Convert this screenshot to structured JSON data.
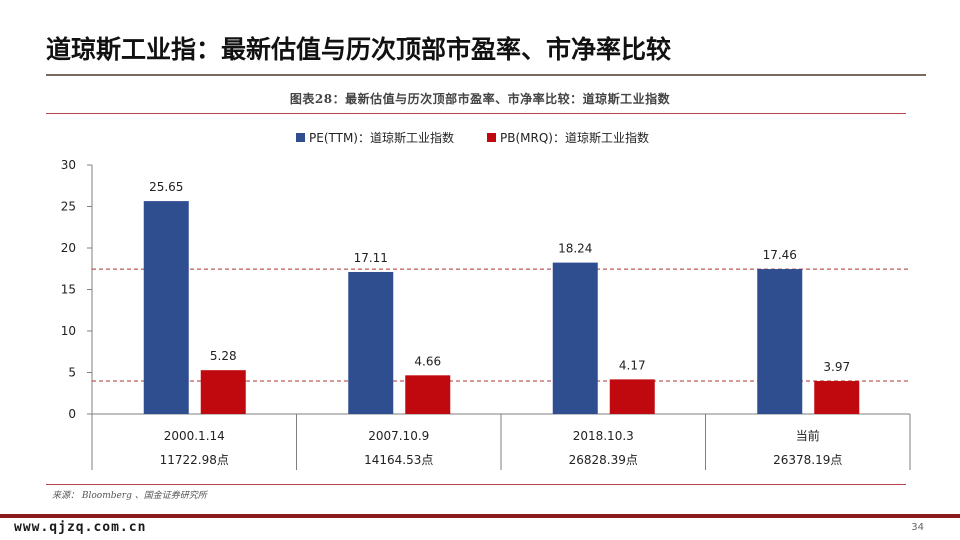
{
  "slide": {
    "title": "道琼斯工业指：最新估值与历次顶部市盈率、市净率比较",
    "figure_caption": "图表28：最新估值与历次顶部市盈率、市净率比较：道琼斯工业指数",
    "source": "来源： Bloomberg 、国金证券研究所",
    "watermark": "www.qjzq.com.cn",
    "page_number": "34"
  },
  "colors": {
    "pe": "#2e4e8f",
    "pb": "#c0090f",
    "guide": "#b03030",
    "axis": "#7f7f7f"
  },
  "chart_data": {
    "type": "bar",
    "categories": [
      "2000.1.14",
      "2007.10.9",
      "2018.10.3",
      "当前"
    ],
    "category_sublabels": [
      "11722.98点",
      "14164.53点",
      "26828.39点",
      "26378.19点"
    ],
    "series": [
      {
        "name": "PE(TTM)：道琼斯工业指数",
        "values": [
          25.65,
          17.11,
          18.24,
          17.46
        ]
      },
      {
        "name": "PB(MRQ)：道琼斯工业指数",
        "values": [
          5.28,
          4.66,
          4.17,
          3.97
        ]
      }
    ],
    "data_labels": [
      [
        "25.65",
        "17.11",
        "18.24",
        "17.46"
      ],
      [
        "5.28",
        "4.66",
        "4.17",
        "3.97"
      ]
    ],
    "reference_lines": [
      17.46,
      3.97
    ],
    "ylim": [
      0,
      30
    ],
    "yticks": [
      0,
      5,
      10,
      15,
      20,
      25,
      30
    ],
    "legend_position": "top-center",
    "grid": false
  }
}
